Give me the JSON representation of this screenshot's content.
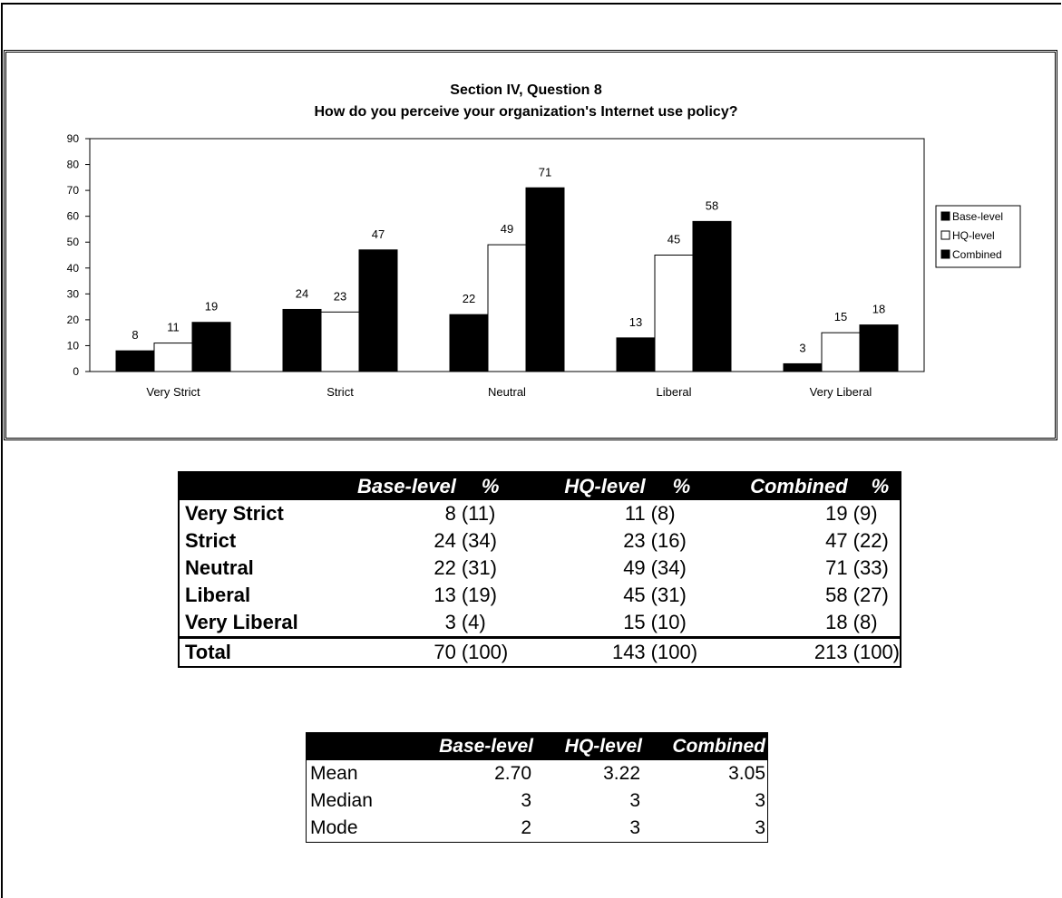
{
  "chart_data": {
    "type": "bar",
    "title": "Section IV, Question 8",
    "subtitle": "How do you perceive your organization's Internet use policy?",
    "categories": [
      "Very Strict",
      "Strict",
      "Neutral",
      "Liberal",
      "Very Liberal"
    ],
    "series": [
      {
        "name": "Base-level",
        "values": [
          8,
          24,
          22,
          13,
          3
        ],
        "color": "#000000"
      },
      {
        "name": "HQ-level",
        "values": [
          11,
          23,
          49,
          45,
          15
        ],
        "color": "#ffffff"
      },
      {
        "name": "Combined",
        "values": [
          19,
          47,
          71,
          58,
          18
        ],
        "color": "#000000"
      }
    ],
    "ylim": [
      0,
      90
    ],
    "yticks": [
      0,
      10,
      20,
      30,
      40,
      50,
      60,
      70,
      80,
      90
    ],
    "legend": "right",
    "grid": false
  },
  "freq_table": {
    "headers": [
      "",
      "Base-level",
      "%",
      "HQ-level",
      "%",
      "Combined",
      "%"
    ],
    "rows": [
      {
        "label": "Very Strict",
        "base": "8",
        "base_pct": "(11)",
        "hq": "11",
        "hq_pct": "(8)",
        "comb": "19",
        "comb_pct": "(9)"
      },
      {
        "label": "Strict",
        "base": "24",
        "base_pct": "(34)",
        "hq": "23",
        "hq_pct": "(16)",
        "comb": "47",
        "comb_pct": "(22)"
      },
      {
        "label": "Neutral",
        "base": "22",
        "base_pct": "(31)",
        "hq": "49",
        "hq_pct": "(34)",
        "comb": "71",
        "comb_pct": "(33)"
      },
      {
        "label": "Liberal",
        "base": "13",
        "base_pct": "(19)",
        "hq": "45",
        "hq_pct": "(31)",
        "comb": "58",
        "comb_pct": "(27)"
      },
      {
        "label": "Very Liberal",
        "base": "3",
        "base_pct": "(4)",
        "hq": "15",
        "hq_pct": "(10)",
        "comb": "18",
        "comb_pct": "(8)"
      }
    ],
    "total": {
      "label": "Total",
      "base": "70",
      "base_pct": "(100)",
      "hq": "143",
      "hq_pct": "(100)",
      "comb": "213",
      "comb_pct": "(100)"
    }
  },
  "stats_table": {
    "headers": [
      "",
      "Base-level",
      "HQ-level",
      "Combined"
    ],
    "rows": [
      {
        "label": "Mean",
        "base": "2.70",
        "hq": "3.22",
        "comb": "3.05"
      },
      {
        "label": "Median",
        "base": "3",
        "hq": "3",
        "comb": "3"
      },
      {
        "label": "Mode",
        "base": "2",
        "hq": "3",
        "comb": "3"
      }
    ]
  }
}
